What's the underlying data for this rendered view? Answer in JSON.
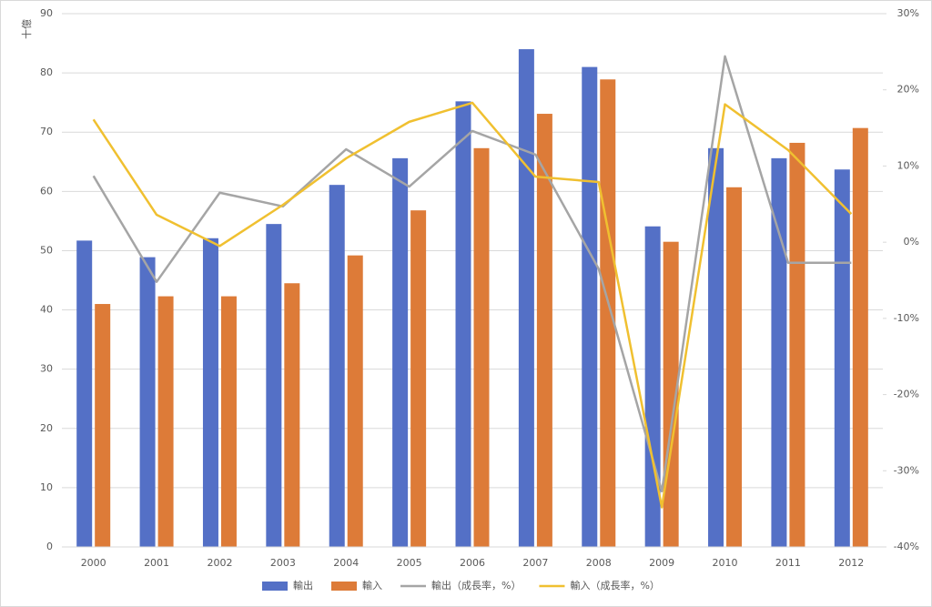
{
  "chart_data": {
    "type": "bar-line",
    "y_label": "十億",
    "categories": [
      "2000",
      "2001",
      "2002",
      "2003",
      "2004",
      "2005",
      "2006",
      "2007",
      "2008",
      "2009",
      "2010",
      "2011",
      "2012"
    ],
    "series": [
      {
        "name": "輸出",
        "type": "bar",
        "color": "#5470c6",
        "values": [
          51.7,
          48.9,
          52.1,
          54.5,
          61.1,
          65.6,
          75.2,
          84.0,
          81.0,
          54.1,
          67.3,
          65.6,
          63.7
        ]
      },
      {
        "name": "輸入",
        "type": "bar",
        "color": "#dd7b38",
        "values": [
          41.0,
          42.3,
          42.3,
          44.5,
          49.2,
          56.8,
          67.3,
          73.1,
          78.9,
          51.5,
          60.7,
          68.2,
          70.7
        ]
      },
      {
        "name": "輸出（成長率，%）",
        "type": "line",
        "axis": "y2",
        "color": "#a5a5a5",
        "values": [
          8.7,
          -5.2,
          6.5,
          4.7,
          12.2,
          7.3,
          14.6,
          11.5,
          -3.5,
          -32.7,
          24.4,
          -2.7,
          -2.7
        ]
      },
      {
        "name": "輸入（成長率，%）",
        "type": "line",
        "axis": "y2",
        "color": "#f0c030",
        "values": [
          16.1,
          3.6,
          -0.5,
          4.9,
          11.0,
          15.8,
          18.3,
          8.6,
          7.9,
          -34.8,
          18.1,
          12.1,
          3.7
        ]
      }
    ],
    "ylim": [
      0,
      90
    ],
    "yticks": [
      0,
      10,
      20,
      30,
      40,
      50,
      60,
      70,
      80,
      90
    ],
    "y2lim": [
      -40,
      30
    ],
    "y2ticks": [
      {
        "value": -40,
        "label": "-40%"
      },
      {
        "value": -30,
        "label": "-30%"
      },
      {
        "value": -20,
        "label": "-20%"
      },
      {
        "value": -10,
        "label": "-10%"
      },
      {
        "value": 0,
        "label": "0%"
      },
      {
        "value": 10,
        "label": "10%"
      },
      {
        "value": 20,
        "label": "20%"
      },
      {
        "value": 30,
        "label": "30%"
      }
    ],
    "grid": true,
    "legend": "bottom"
  }
}
